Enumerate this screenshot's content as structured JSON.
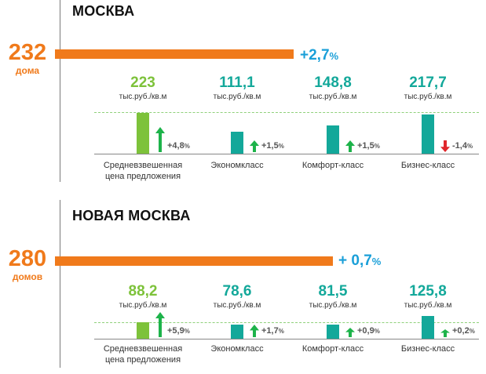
{
  "panels": [
    {
      "title": "МОСКВА",
      "count": "232",
      "count_unit": "дома",
      "growth": "+2,7",
      "growth_unit": "%",
      "categories": [
        {
          "value": "223",
          "unit": "тыс.руб./кв.м",
          "change": "+4,8",
          "change_unit": "%",
          "label1": "Средневзвешенная",
          "label2": "цена предложения",
          "color": "#7dc23a",
          "trend": "up"
        },
        {
          "value": "111,1",
          "unit": "тыс.руб./кв.м",
          "change": "+1,5",
          "change_unit": "%",
          "label1": "Экономкласс",
          "label2": "",
          "color": "#13a89a",
          "trend": "up"
        },
        {
          "value": "148,8",
          "unit": "тыс.руб./кв.м",
          "change": "+1,5",
          "change_unit": "%",
          "label1": "Комфорт-класс",
          "label2": "",
          "color": "#13a89a",
          "trend": "up"
        },
        {
          "value": "217,7",
          "unit": "тыс.руб./кв.м",
          "change": "-1,4",
          "change_unit": "%",
          "label1": "Бизнес-класс",
          "label2": "",
          "color": "#13a89a",
          "trend": "down"
        }
      ]
    },
    {
      "title": "НОВАЯ МОСКВА",
      "count": "280",
      "count_unit": "домов",
      "growth": "+ 0,7",
      "growth_unit": "%",
      "categories": [
        {
          "value": "88,2",
          "unit": "тыс.руб./кв.м",
          "change": "+5,9",
          "change_unit": "%",
          "label1": "Средневзвешенная",
          "label2": "цена предложения",
          "color": "#7dc23a",
          "trend": "up"
        },
        {
          "value": "78,6",
          "unit": "тыс.руб./кв.м",
          "change": "+1,7",
          "change_unit": "%",
          "label1": "Экономкласс",
          "label2": "",
          "color": "#13a89a",
          "trend": "up"
        },
        {
          "value": "81,5",
          "unit": "тыс.руб./кв.м",
          "change": "+0,9",
          "change_unit": "%",
          "label1": "Комфорт-класс",
          "label2": "",
          "color": "#13a89a",
          "trend": "up"
        },
        {
          "value": "125,8",
          "unit": "тыс.руб./кв.м",
          "change": "+0,2",
          "change_unit": "%",
          "label1": "Бизнес-класс",
          "label2": "",
          "color": "#13a89a",
          "trend": "up"
        }
      ]
    }
  ],
  "colors": {
    "orange": "#f07a1b",
    "blue": "#1a9fd8",
    "green": "#7dc23a",
    "teal": "#13a89a",
    "arrow_up": "#1db34a",
    "arrow_down": "#e0262b"
  },
  "chart_data": [
    {
      "type": "bar",
      "title": "МОСКВА",
      "categories": [
        "Средневзвешенная цена предложения",
        "Экономкласс",
        "Комфорт-класс",
        "Бизнес-класс"
      ],
      "values": [
        223,
        111.1,
        148.8,
        217.7
      ],
      "changes_percent": [
        4.8,
        1.5,
        1.5,
        -1.4
      ],
      "houses": 232,
      "growth_percent": 2.7
    },
    {
      "type": "bar",
      "title": "НОВАЯ МОСКВА",
      "categories": [
        "Средневзвешенная цена предложения",
        "Экономкласс",
        "Комфорт-класс",
        "Бизнес-класс"
      ],
      "values": [
        88.2,
        78.6,
        81.5,
        125.8
      ],
      "changes_percent": [
        5.9,
        1.7,
        0.9,
        0.2
      ],
      "houses": 280,
      "growth_percent": 0.7
    }
  ]
}
